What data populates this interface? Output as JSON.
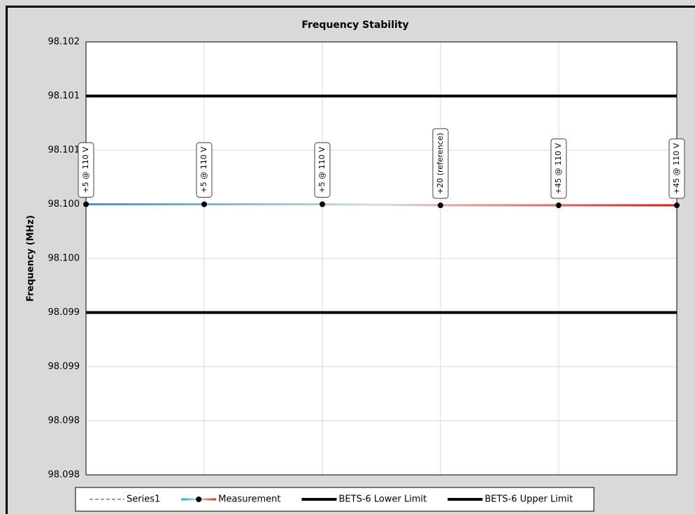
{
  "chart_data": {
    "type": "line",
    "title": "Frequency Stability",
    "y_label": "Frequency (MHz)",
    "categories": [
      null,
      null,
      null,
      null,
      null,
      null
    ],
    "ylim": [
      98.098,
      98.102
    ],
    "yticks": [
      {
        "value": 98.098,
        "label": "98.098"
      },
      {
        "value": 98.0985,
        "label": "98.098"
      },
      {
        "value": 98.099,
        "label": "98.099"
      },
      {
        "value": 98.0995,
        "label": "98.099"
      },
      {
        "value": 98.1,
        "label": "98.100"
      },
      {
        "value": 98.1005,
        "label": "98.100"
      },
      {
        "value": 98.101,
        "label": "98.101"
      },
      {
        "value": 98.1015,
        "label": "98.101"
      },
      {
        "value": 98.102,
        "label": "98.102"
      }
    ],
    "grid": true,
    "series": [
      {
        "name": "Series1",
        "color": "#808080",
        "dash": true,
        "values": [
          null,
          null,
          null,
          null,
          null,
          null
        ]
      },
      {
        "name": "Measurement",
        "color": [
          "#1ea0e6",
          "#dcdcdc",
          "#e01e1e"
        ],
        "marker": true,
        "values": [
          98.1005,
          98.1005,
          98.1005,
          98.10049,
          98.10049,
          98.10049
        ],
        "point_labels": [
          "+5 @ 110 V",
          "+5 @ 110 V",
          "+5 @ 110 V",
          "+20 (reference)",
          "+45 @ 110 V",
          "+45 @ 110 V"
        ]
      },
      {
        "name": "BETS-6 Lower Limit",
        "color": "#000000",
        "values": [
          98.0995,
          98.0995,
          98.0995,
          98.0995,
          98.0995,
          98.0995
        ]
      },
      {
        "name": "BETS-6 Upper Limit",
        "color": "#000000",
        "values": [
          98.1015,
          98.1015,
          98.1015,
          98.1015,
          98.1015,
          98.1015
        ]
      }
    ],
    "legend": "bottom"
  }
}
